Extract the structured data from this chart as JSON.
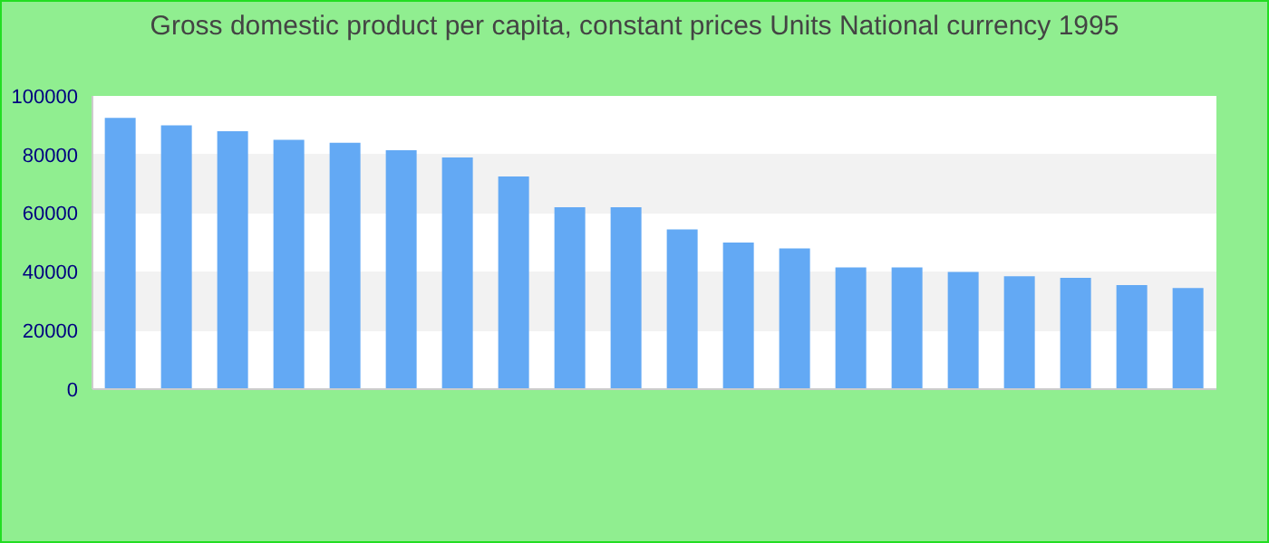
{
  "chart_data": {
    "type": "bar",
    "title": "Gross domestic product per capita, constant prices Units National currency 1995",
    "categories": [
      null,
      null,
      null,
      null,
      null,
      null,
      null,
      null,
      null,
      null,
      null,
      null,
      null,
      null,
      null,
      null,
      null,
      null,
      null,
      null
    ],
    "values": [
      92500,
      90000,
      88000,
      85000,
      84000,
      81500,
      79000,
      72500,
      62000,
      62000,
      54500,
      50000,
      48000,
      41500,
      41500,
      40000,
      38500,
      38000,
      35500,
      34500
    ],
    "color": "#63a9f4",
    "ylim": [
      0,
      100000
    ],
    "yticks": [
      0,
      20000,
      40000,
      60000,
      80000,
      100000
    ],
    "legend": false
  }
}
